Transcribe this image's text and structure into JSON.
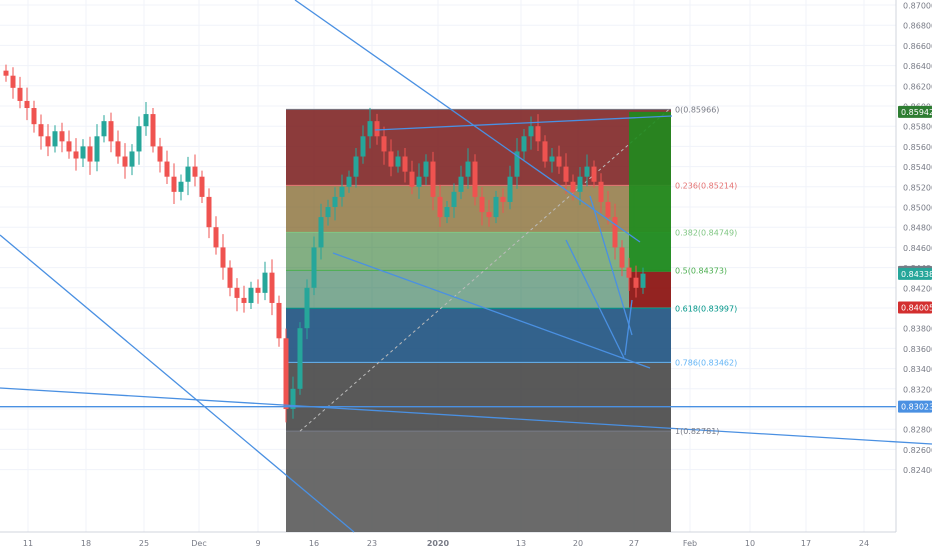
{
  "chart_data": {
    "type": "candlestick",
    "price_axis": {
      "range": [
        0.825,
        0.87
      ],
      "ticks": [
        "0.87000",
        "0.86800",
        "0.86600",
        "0.86400",
        "0.86200",
        "0.86000",
        "0.85800",
        "0.85600",
        "0.85400",
        "0.85200",
        "0.85000",
        "0.84800",
        "0.84600",
        "0.84400",
        "0.84200",
        "0.84000",
        "0.83800",
        "0.83600",
        "0.83400",
        "0.83200",
        "0.83000",
        "0.82800",
        "0.82600",
        "0.82400"
      ]
    },
    "time_axis": {
      "labels": [
        "11",
        "18",
        "25",
        "Dec",
        "9",
        "16",
        "23",
        "2020",
        "13",
        "20",
        "27",
        "Feb",
        "10",
        "17",
        "24"
      ]
    },
    "price_labels": [
      {
        "value": "0.85942",
        "color": "#2e7d32"
      },
      {
        "value": "0.84358",
        "color": "#787b86"
      },
      {
        "value": "0.84338",
        "color": "#26a69a"
      },
      {
        "value": "0.84005",
        "color": "#d32f2f"
      },
      {
        "value": "0.83023",
        "color": "#4a90e2"
      }
    ],
    "fibonacci": [
      {
        "level": "0",
        "price": 0.85966,
        "label": "0(0.85966)",
        "color": "#787b86"
      },
      {
        "level": "0.236",
        "price": 0.85214,
        "label": "0.236(0.85214)",
        "color": "#e57373"
      },
      {
        "level": "0.382",
        "price": 0.84749,
        "label": "0.382(0.84749)",
        "color": "#81c784"
      },
      {
        "level": "0.5",
        "price": 0.84373,
        "label": "0.5(0.84373)",
        "color": "#4caf50"
      },
      {
        "level": "0.618",
        "price": 0.83997,
        "label": "0.618(0.83997)",
        "color": "#009688"
      },
      {
        "level": "0.786",
        "price": 0.83462,
        "label": "0.786(0.83462)",
        "color": "#64b5f6"
      },
      {
        "level": "1",
        "price": 0.82781,
        "label": "1(0.82781)",
        "color": "#787b86"
      }
    ],
    "series": {
      "closes": [
        0.863,
        0.8618,
        0.8605,
        0.8598,
        0.8582,
        0.857,
        0.856,
        0.8575,
        0.8565,
        0.8555,
        0.8548,
        0.856,
        0.8545,
        0.857,
        0.8585,
        0.8565,
        0.855,
        0.854,
        0.8555,
        0.858,
        0.8592,
        0.856,
        0.8545,
        0.853,
        0.8515,
        0.8525,
        0.854,
        0.853,
        0.851,
        0.848,
        0.846,
        0.844,
        0.842,
        0.841,
        0.8405,
        0.842,
        0.8415,
        0.8435,
        0.8405,
        0.837,
        0.83,
        0.832,
        0.838,
        0.842,
        0.846,
        0.849,
        0.85,
        0.851,
        0.852,
        0.853,
        0.855,
        0.857,
        0.8585,
        0.857,
        0.8555,
        0.854,
        0.855,
        0.8535,
        0.852,
        0.853,
        0.8545,
        0.851,
        0.849,
        0.85,
        0.8515,
        0.853,
        0.8545,
        0.851,
        0.8495,
        0.849,
        0.851,
        0.8505,
        0.853,
        0.8555,
        0.857,
        0.858,
        0.8565,
        0.8545,
        0.855,
        0.854,
        0.8525,
        0.8515,
        0.853,
        0.854,
        0.8525,
        0.8505,
        0.849,
        0.846,
        0.844,
        0.843,
        0.842,
        0.8434
      ]
    }
  }
}
